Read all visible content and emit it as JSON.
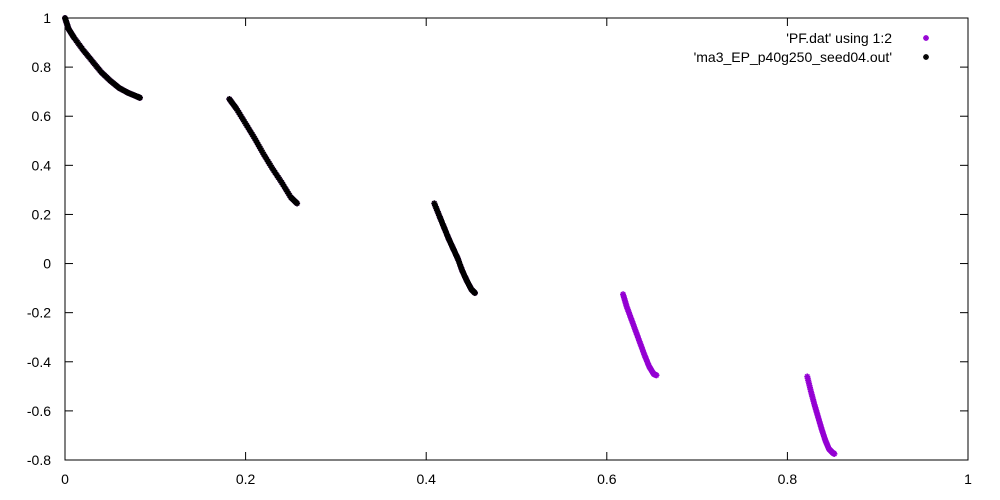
{
  "chart_data": {
    "type": "scatter",
    "title": "",
    "xlabel": "",
    "ylabel": "",
    "xlim": [
      0,
      1
    ],
    "ylim": [
      -0.8,
      1
    ],
    "grid": false,
    "legend_position": "top-right",
    "x_ticks": [
      "0",
      "0.2",
      "0.4",
      "0.6",
      "0.8",
      "1"
    ],
    "y_ticks": [
      "1",
      "0.8",
      "0.6",
      "0.4",
      "0.2",
      "0",
      "-0.2",
      "-0.4",
      "-0.6",
      "-0.8"
    ],
    "series": [
      {
        "name": "'PF.dat' using 1:2",
        "color": "#9400d3",
        "segments": [
          [
            [
              0.0,
              1.0
            ],
            [
              0.004,
              0.955
            ],
            [
              0.01,
              0.92
            ],
            [
              0.02,
              0.87
            ],
            [
              0.03,
              0.825
            ],
            [
              0.04,
              0.78
            ],
            [
              0.05,
              0.745
            ],
            [
              0.06,
              0.715
            ],
            [
              0.07,
              0.695
            ],
            [
              0.08,
              0.68
            ],
            [
              0.083,
              0.675
            ]
          ],
          [
            [
              0.182,
              0.67
            ],
            [
              0.19,
              0.63
            ],
            [
              0.2,
              0.57
            ],
            [
              0.21,
              0.51
            ],
            [
              0.22,
              0.445
            ],
            [
              0.23,
              0.385
            ],
            [
              0.24,
              0.33
            ],
            [
              0.25,
              0.27
            ],
            [
              0.257,
              0.245
            ]
          ],
          [
            [
              0.409,
              0.245
            ],
            [
              0.415,
              0.19
            ],
            [
              0.42,
              0.145
            ],
            [
              0.425,
              0.1
            ],
            [
              0.43,
              0.06
            ],
            [
              0.435,
              0.02
            ],
            [
              0.44,
              -0.03
            ],
            [
              0.445,
              -0.07
            ],
            [
              0.45,
              -0.105
            ],
            [
              0.454,
              -0.12
            ]
          ],
          [
            [
              0.618,
              -0.125
            ],
            [
              0.622,
              -0.175
            ],
            [
              0.627,
              -0.225
            ],
            [
              0.632,
              -0.275
            ],
            [
              0.637,
              -0.325
            ],
            [
              0.642,
              -0.375
            ],
            [
              0.647,
              -0.42
            ],
            [
              0.652,
              -0.45
            ],
            [
              0.655,
              -0.455
            ]
          ],
          [
            [
              0.822,
              -0.46
            ],
            [
              0.826,
              -0.52
            ],
            [
              0.83,
              -0.575
            ],
            [
              0.834,
              -0.625
            ],
            [
              0.838,
              -0.675
            ],
            [
              0.842,
              -0.72
            ],
            [
              0.846,
              -0.755
            ],
            [
              0.85,
              -0.77
            ],
            [
              0.852,
              -0.775
            ]
          ]
        ]
      },
      {
        "name": "'ma3_EP_p40g250_seed04.out'",
        "color": "#000000",
        "segments": [
          [
            [
              0.0,
              1.0
            ],
            [
              0.004,
              0.955
            ],
            [
              0.01,
              0.92
            ],
            [
              0.02,
              0.87
            ],
            [
              0.03,
              0.825
            ],
            [
              0.04,
              0.78
            ],
            [
              0.05,
              0.745
            ],
            [
              0.06,
              0.715
            ],
            [
              0.07,
              0.695
            ],
            [
              0.08,
              0.68
            ],
            [
              0.083,
              0.675
            ]
          ],
          [
            [
              0.182,
              0.67
            ],
            [
              0.19,
              0.63
            ],
            [
              0.2,
              0.57
            ],
            [
              0.21,
              0.51
            ],
            [
              0.22,
              0.445
            ],
            [
              0.23,
              0.385
            ],
            [
              0.24,
              0.33
            ],
            [
              0.25,
              0.27
            ],
            [
              0.257,
              0.245
            ]
          ],
          [
            [
              0.409,
              0.245
            ],
            [
              0.415,
              0.19
            ],
            [
              0.42,
              0.145
            ],
            [
              0.425,
              0.1
            ],
            [
              0.43,
              0.06
            ],
            [
              0.435,
              0.02
            ],
            [
              0.44,
              -0.03
            ],
            [
              0.445,
              -0.07
            ],
            [
              0.45,
              -0.105
            ],
            [
              0.454,
              -0.12
            ]
          ]
        ]
      }
    ]
  }
}
